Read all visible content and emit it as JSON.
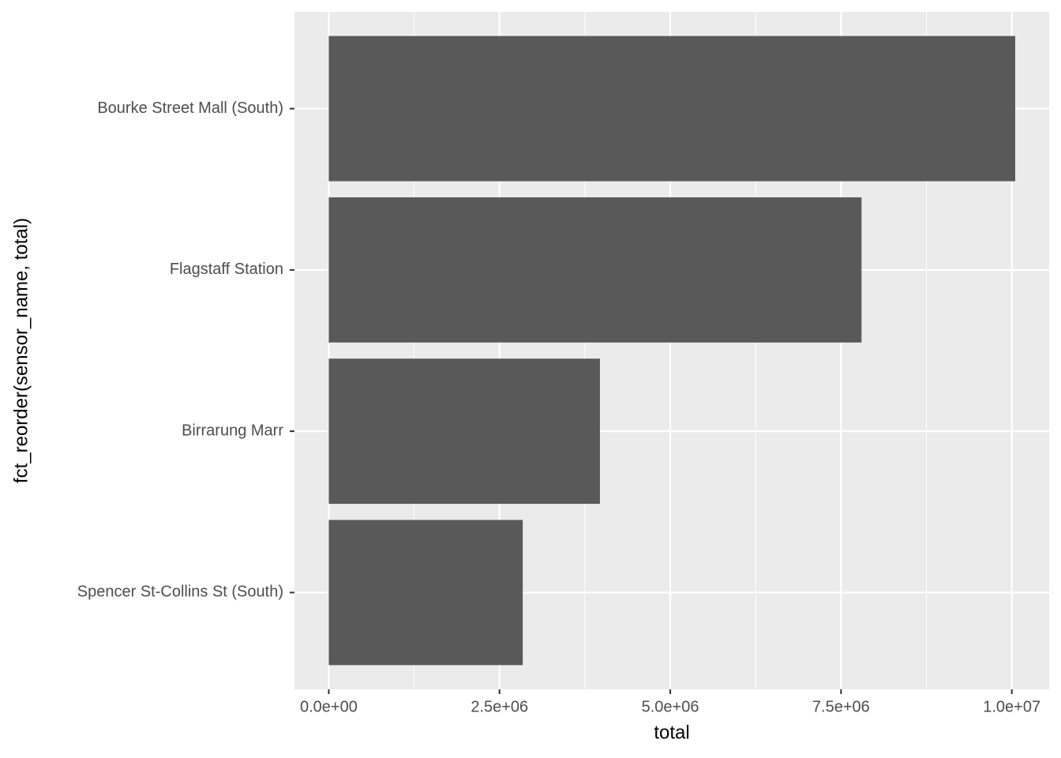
{
  "chart_data": {
    "type": "bar",
    "orientation": "horizontal",
    "x_label": "total",
    "y_label": "fct_reorder(sensor_name, total)",
    "categories": [
      "Bourke Street Mall (South)",
      "Flagstaff Station",
      "Birrarung Marr",
      "Spencer St-Collins St (South)"
    ],
    "values": [
      10050000,
      7800000,
      3970000,
      2840000
    ],
    "color": "#595959",
    "xlim": [
      -502000,
      10547000
    ],
    "xticks": [
      {
        "value": 0,
        "label": "0.0e+00"
      },
      {
        "value": 2500000,
        "label": "2.5e+06"
      },
      {
        "value": 5000000,
        "label": "5.0e+06"
      },
      {
        "value": 7500000,
        "label": "7.5e+06"
      },
      {
        "value": 10000000,
        "label": "1.0e+07"
      }
    ],
    "x_minor_ticks": [
      1250000,
      3750000,
      6250000,
      8750000
    ],
    "grid": true
  }
}
